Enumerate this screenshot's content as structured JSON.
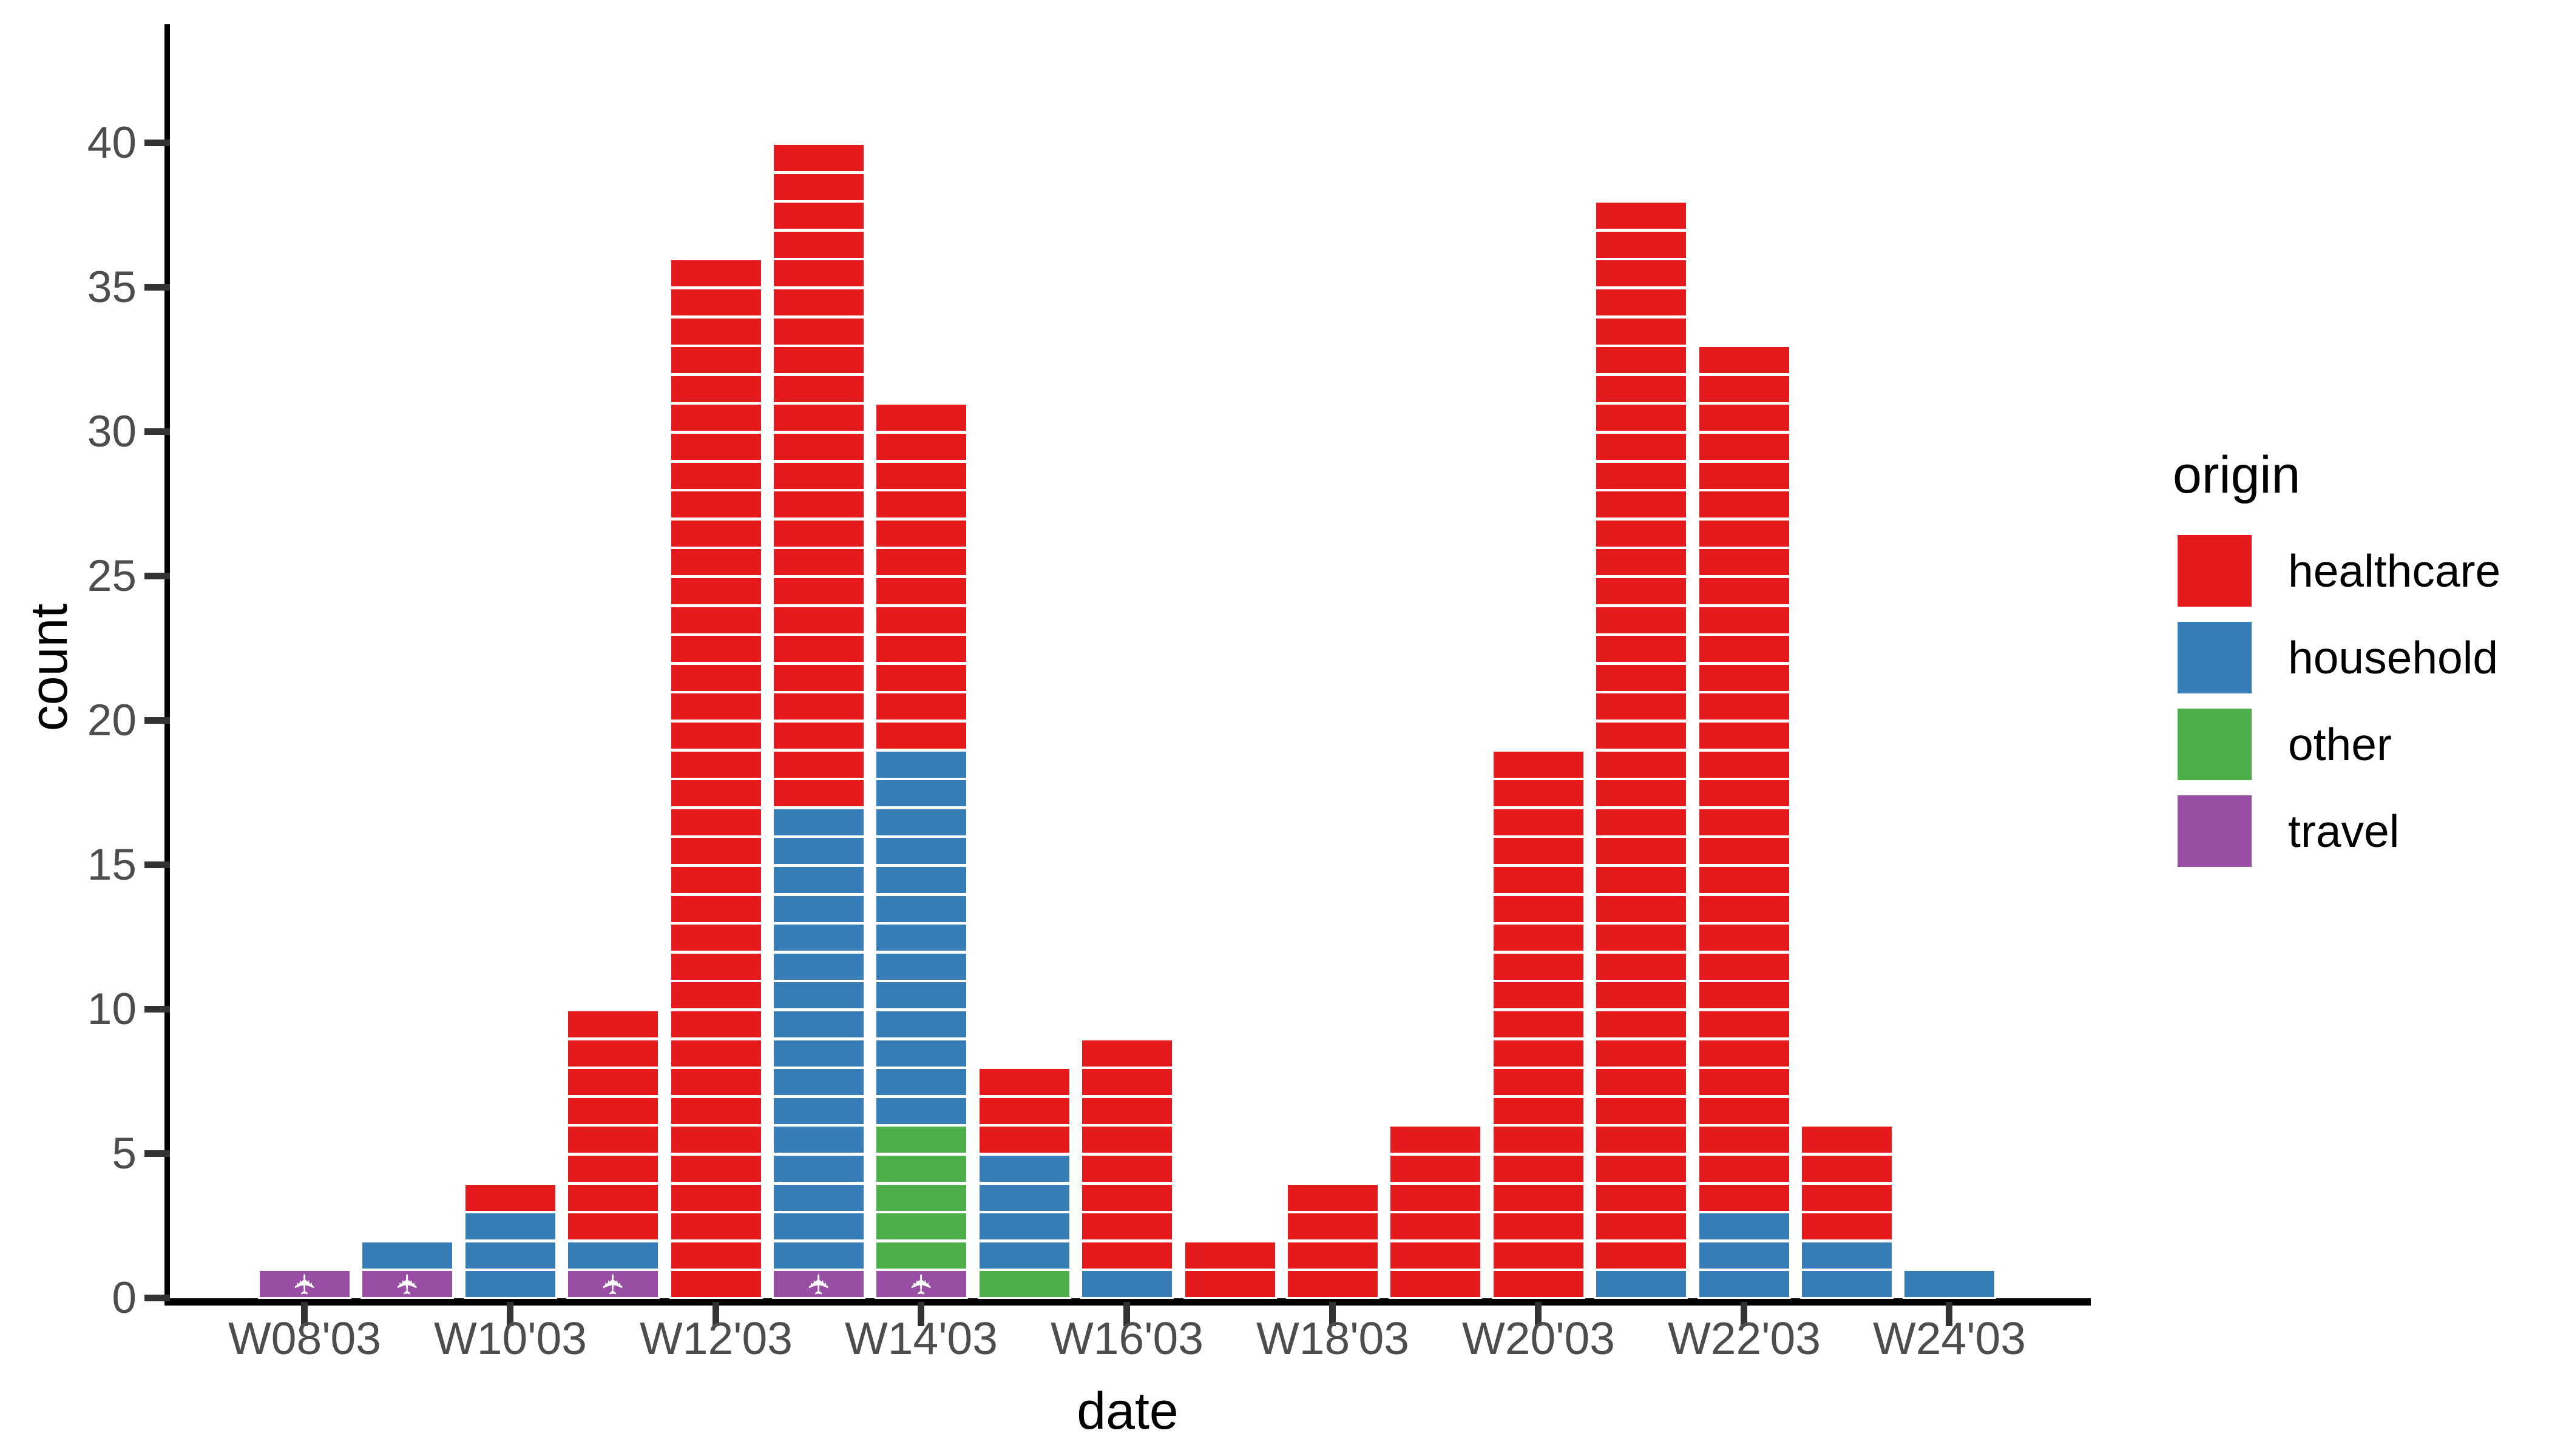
{
  "figure": {
    "background": "#ffffff"
  },
  "chart_data": {
    "type": "bar",
    "subtype": "stacked_unit_block_epicurve",
    "title": "",
    "xlabel": "date",
    "ylabel": "count",
    "grid": false,
    "legend_title": "origin",
    "legend_position": "right",
    "categories": [
      "W08'03",
      "W09'03",
      "W10'03",
      "W11'03",
      "W12'03",
      "W13'03",
      "W14'03",
      "W15'03",
      "W16'03",
      "W17'03",
      "W18'03",
      "W19'03",
      "W20'03",
      "W21'03",
      "W22'03",
      "W23'03",
      "W24'03"
    ],
    "x_tick_labels": [
      "W08'03",
      "W10'03",
      "W12'03",
      "W14'03",
      "W16'03",
      "W18'03",
      "W20'03",
      "W22'03",
      "W24'03"
    ],
    "y_ticks": [
      0,
      5,
      10,
      15,
      20,
      25,
      30,
      35,
      40
    ],
    "ylim": [
      0,
      42
    ],
    "stack_order_bottom_to_top": [
      "travel",
      "other",
      "household",
      "healthcare"
    ],
    "series": [
      {
        "name": "healthcare",
        "color": "#E41A1C",
        "values": [
          0,
          0,
          1,
          8,
          36,
          23,
          12,
          3,
          8,
          2,
          4,
          6,
          19,
          37,
          30,
          4,
          0
        ]
      },
      {
        "name": "household",
        "color": "#377EB8",
        "values": [
          0,
          1,
          3,
          1,
          0,
          16,
          13,
          4,
          1,
          0,
          0,
          0,
          0,
          1,
          3,
          2,
          1
        ]
      },
      {
        "name": "other",
        "color": "#4DAF4A",
        "values": [
          0,
          0,
          0,
          0,
          0,
          0,
          5,
          1,
          0,
          0,
          0,
          0,
          0,
          0,
          0,
          0,
          0
        ]
      },
      {
        "name": "travel",
        "color": "#984EA3",
        "values": [
          1,
          1,
          0,
          1,
          0,
          1,
          1,
          0,
          0,
          0,
          0,
          0,
          0,
          0,
          0,
          0,
          0
        ],
        "block_icon": "✈",
        "block_icon_color": "#ffffff"
      }
    ],
    "bar_totals": [
      1,
      2,
      4,
      10,
      36,
      40,
      31,
      8,
      9,
      2,
      4,
      6,
      19,
      38,
      33,
      6,
      1
    ]
  },
  "legend": {
    "title": "origin",
    "items": [
      {
        "label": "healthcare",
        "color": "#E41A1C"
      },
      {
        "label": "household",
        "color": "#377EB8"
      },
      {
        "label": "other",
        "color": "#4DAF4A"
      },
      {
        "label": "travel",
        "color": "#984EA3"
      }
    ]
  },
  "axes": {
    "axis_color": "#000000",
    "tick_color": "#333333",
    "tick_label_color": "#4d4d4d"
  }
}
